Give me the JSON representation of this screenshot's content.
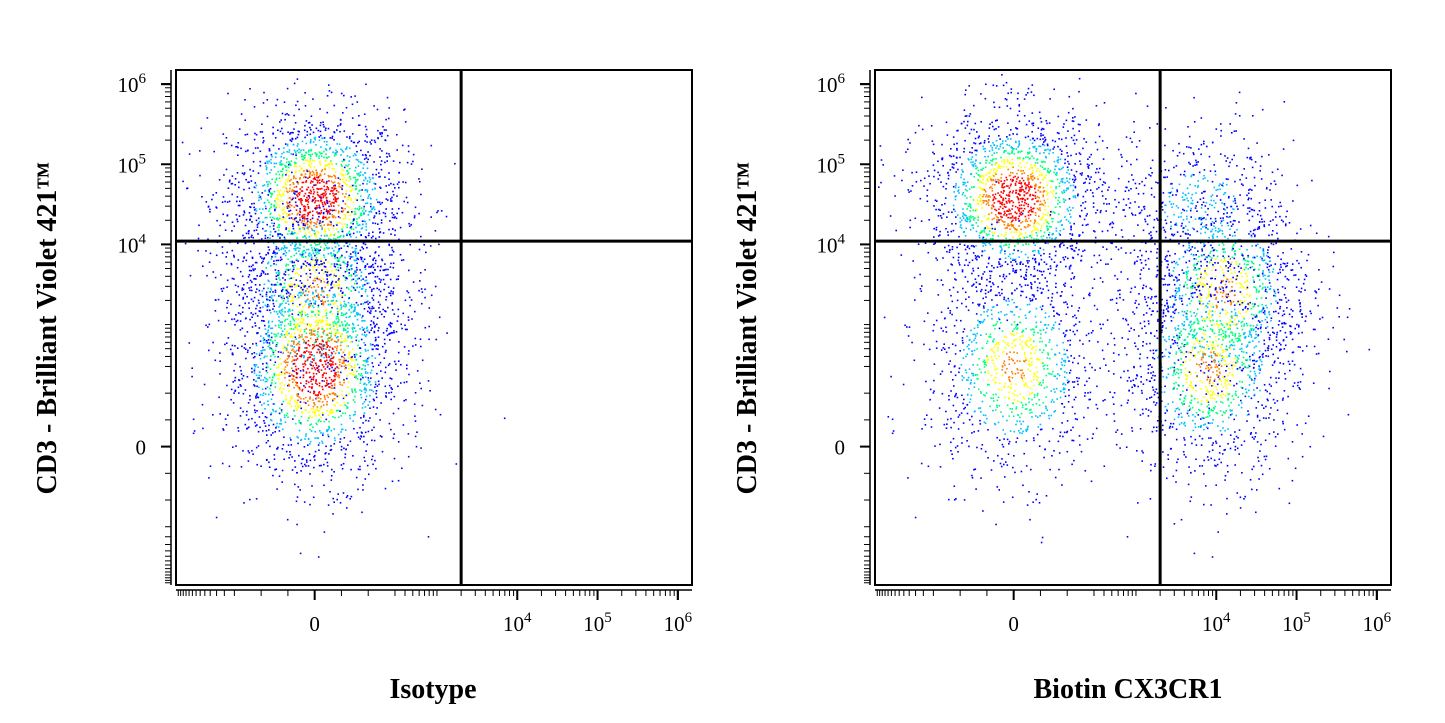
{
  "chart_data": [
    {
      "type": "scatter",
      "subtype": "flow-cytometry-density-dot-plot",
      "xlabel": "Isotype",
      "ylabel": "CD3 - Brilliant Violet 421™",
      "x_ticks": [
        {
          "value": 0,
          "base": "0",
          "exp": ""
        },
        {
          "value": 10000,
          "base": "10",
          "exp": "4"
        },
        {
          "value": 100000,
          "base": "10",
          "exp": "5"
        },
        {
          "value": 1000000,
          "base": "10",
          "exp": "6"
        }
      ],
      "y_ticks": [
        {
          "value": 0,
          "base": "0",
          "exp": ""
        },
        {
          "value": 10000,
          "base": "10",
          "exp": "4"
        },
        {
          "value": 100000,
          "base": "10",
          "exp": "5"
        },
        {
          "value": 1000000,
          "base": "10",
          "exp": "6"
        }
      ],
      "scale": "biexponential",
      "quadrant_gate": {
        "x": 2000,
        "y": 11000
      },
      "populations": [
        {
          "x_center": 0,
          "y_center": 38000,
          "density": "high"
        },
        {
          "x_center": 0,
          "y_center": 2500,
          "density": "medium"
        },
        {
          "x_center": 0,
          "y_center": 300,
          "density": "high"
        }
      ]
    },
    {
      "type": "scatter",
      "subtype": "flow-cytometry-density-dot-plot",
      "xlabel": "Biotin CX3CR1",
      "ylabel": "CD3 - Brilliant Violet 421™",
      "x_ticks": [
        {
          "value": 0,
          "base": "0",
          "exp": ""
        },
        {
          "value": 10000,
          "base": "10",
          "exp": "4"
        },
        {
          "value": 100000,
          "base": "10",
          "exp": "5"
        },
        {
          "value": 1000000,
          "base": "10",
          "exp": "6"
        }
      ],
      "y_ticks": [
        {
          "value": 0,
          "base": "0",
          "exp": ""
        },
        {
          "value": 10000,
          "base": "10",
          "exp": "4"
        },
        {
          "value": 100000,
          "base": "10",
          "exp": "5"
        },
        {
          "value": 1000000,
          "base": "10",
          "exp": "6"
        }
      ],
      "scale": "biexponential",
      "quadrant_gate": {
        "x": 2000,
        "y": 11000
      },
      "populations": [
        {
          "x_center": 0,
          "y_center": 38000,
          "density": "high"
        },
        {
          "x_center": 6000,
          "y_center": 30000,
          "density": "low"
        },
        {
          "x_center": 12000,
          "y_center": 2500,
          "density": "medium"
        },
        {
          "x_center": 0,
          "y_center": 300,
          "density": "medium"
        },
        {
          "x_center": 8000,
          "y_center": 300,
          "density": "medium"
        }
      ]
    }
  ],
  "colors": {
    "density_scale": [
      "#0000ff",
      "#00c0ff",
      "#00ff80",
      "#ffff00",
      "#ff8000",
      "#ff0000"
    ],
    "frame": "#000000"
  }
}
